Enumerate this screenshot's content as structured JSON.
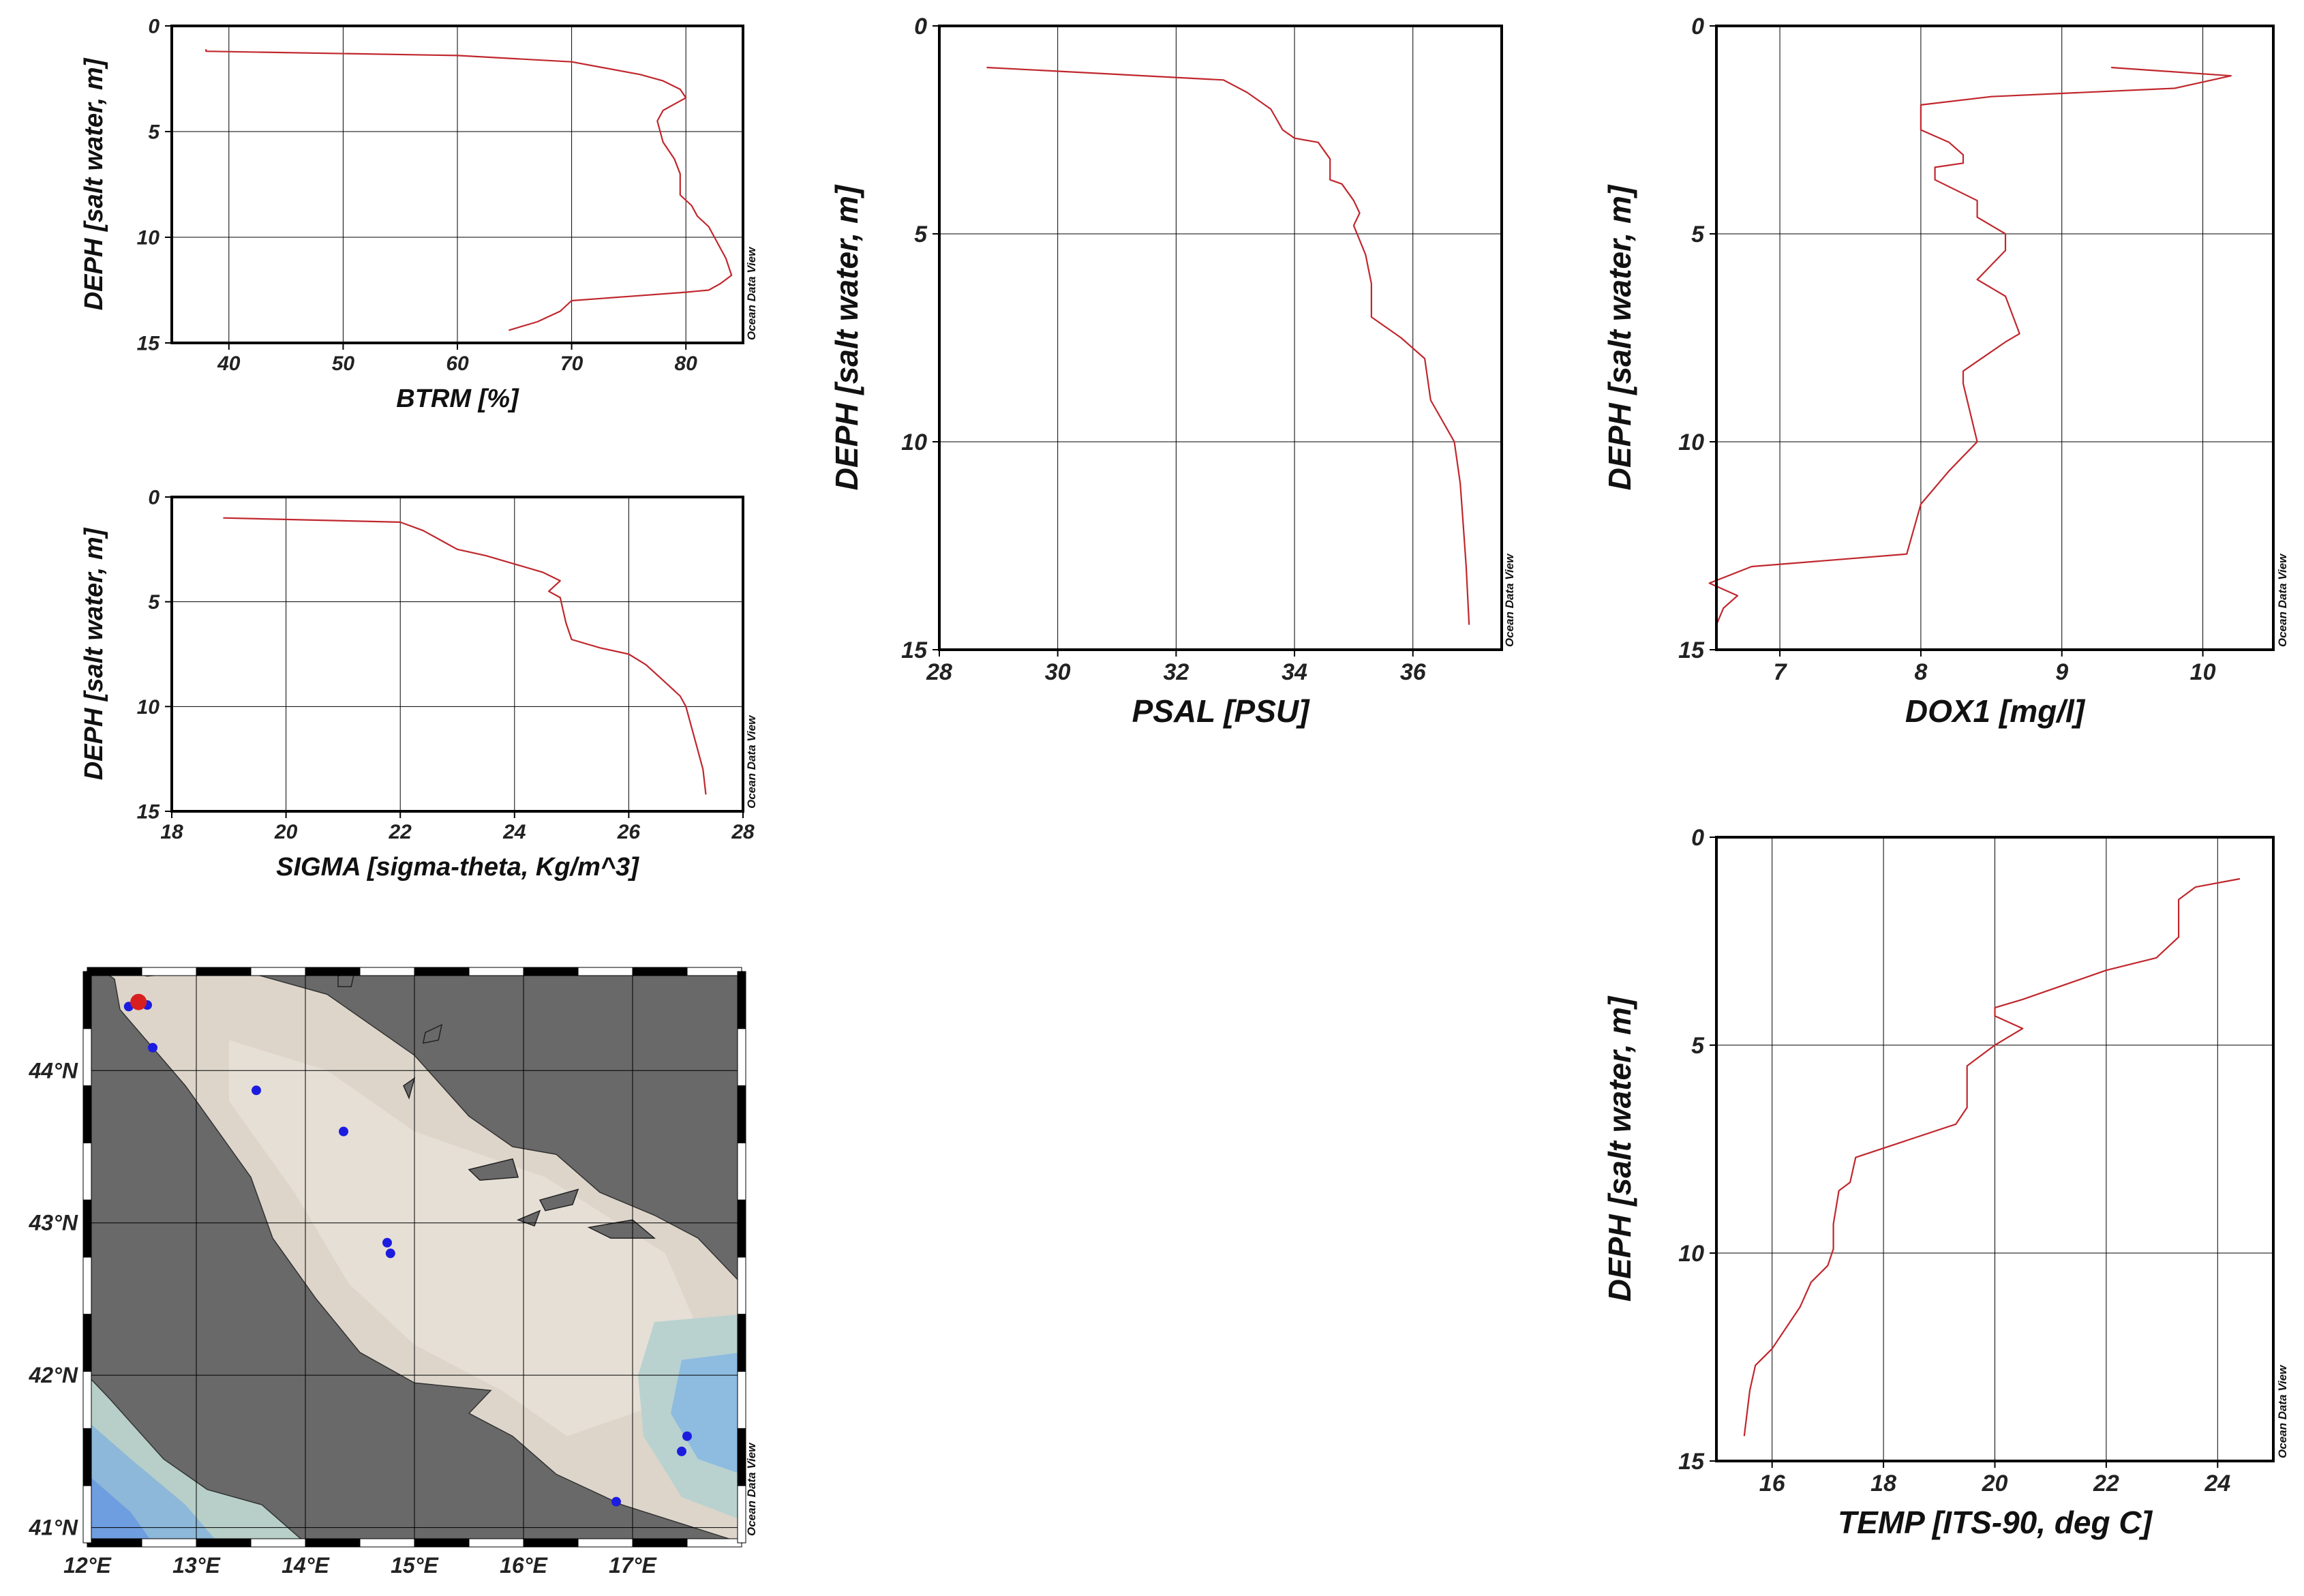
{
  "watermark": "Ocean Data View",
  "chart_data": [
    {
      "id": "btrm",
      "type": "line",
      "xlabel": "BTRM [%]",
      "ylabel": "DEPH [salt water, m]",
      "xlim": [
        35,
        85
      ],
      "ylim": [
        15,
        0
      ],
      "xticks": [
        40,
        50,
        60,
        70,
        80
      ],
      "yticks": [
        0,
        5,
        10,
        15
      ],
      "grid": true,
      "line_color": "#c0272d",
      "series": [
        {
          "x": [
            38,
            38,
            60,
            70,
            73,
            76,
            78,
            79.5,
            80,
            79,
            78,
            77.5,
            78,
            79,
            79.5,
            79.5,
            80.5,
            81,
            82,
            82.5,
            83,
            83.5,
            84,
            83,
            82,
            80,
            75,
            70,
            69,
            67,
            64.5
          ],
          "y": [
            1.1,
            1.2,
            1.4,
            1.7,
            2.0,
            2.3,
            2.6,
            3.0,
            3.4,
            3.7,
            4.0,
            4.5,
            5.5,
            6.3,
            7.0,
            8.0,
            8.5,
            9.0,
            9.5,
            10.0,
            10.5,
            11.0,
            11.8,
            12.2,
            12.5,
            12.6,
            12.8,
            13.0,
            13.5,
            14.0,
            14.4
          ]
        }
      ]
    },
    {
      "id": "sigma",
      "type": "line",
      "xlabel": "SIGMA [sigma-theta, Kg/m^3]",
      "ylabel": "DEPH [salt water, m]",
      "xlim": [
        18,
        28
      ],
      "ylim": [
        15,
        0
      ],
      "xticks": [
        18,
        20,
        22,
        24,
        26,
        28
      ],
      "yticks": [
        0,
        5,
        10,
        15
      ],
      "grid": true,
      "line_color": "#c0272d",
      "series": [
        {
          "x": [
            18.9,
            22.0,
            22.4,
            22.8,
            23.0,
            23.5,
            24.0,
            24.5,
            24.8,
            24.6,
            24.8,
            24.9,
            25.0,
            25.5,
            26.0,
            26.3,
            26.5,
            26.7,
            26.9,
            27.0,
            27.1,
            27.2,
            27.3,
            27.35
          ],
          "y": [
            1.0,
            1.2,
            1.6,
            2.2,
            2.5,
            2.8,
            3.2,
            3.6,
            4.0,
            4.5,
            4.8,
            6.0,
            6.8,
            7.2,
            7.5,
            8.0,
            8.5,
            9.0,
            9.5,
            10.0,
            11.0,
            12.0,
            13.0,
            14.2
          ]
        }
      ]
    },
    {
      "id": "psal",
      "type": "line",
      "xlabel": "PSAL [PSU]",
      "ylabel": "DEPH [salt water, m]",
      "xlim": [
        28,
        37.5
      ],
      "ylim": [
        15,
        0
      ],
      "xticks": [
        28,
        30,
        32,
        34,
        36
      ],
      "yticks": [
        0,
        5,
        10,
        15
      ],
      "grid": true,
      "line_color": "#c0272d",
      "series": [
        {
          "x": [
            28.8,
            32.8,
            33.2,
            33.6,
            33.8,
            34.0,
            34.4,
            34.6,
            34.6,
            34.8,
            35.0,
            35.1,
            35.0,
            35.2,
            35.3,
            35.3,
            35.8,
            36.2,
            36.3,
            36.5,
            36.7,
            36.8,
            36.85,
            36.9,
            36.95
          ],
          "y": [
            1.0,
            1.3,
            1.6,
            2.0,
            2.5,
            2.7,
            2.8,
            3.2,
            3.7,
            3.8,
            4.2,
            4.5,
            4.8,
            5.5,
            6.2,
            7.0,
            7.5,
            8.0,
            9.0,
            9.5,
            10.0,
            11.0,
            12.0,
            13.0,
            14.4
          ]
        }
      ]
    },
    {
      "id": "dox1",
      "type": "line",
      "xlabel": "DOX1 [mg/l]",
      "ylabel": "DEPH [salt water, m]",
      "xlim": [
        6.55,
        10.5
      ],
      "ylim": [
        15,
        0
      ],
      "xticks": [
        7,
        8,
        9,
        10
      ],
      "yticks": [
        0,
        5,
        10,
        15
      ],
      "grid": true,
      "line_color": "#c0272d",
      "series": [
        {
          "x": [
            9.35,
            10.2,
            9.8,
            8.5,
            8.0,
            8.0,
            8.2,
            8.3,
            8.3,
            8.1,
            8.1,
            8.4,
            8.4,
            8.6,
            8.6,
            8.4,
            8.6,
            8.7,
            8.6,
            8.3,
            8.3,
            8.4,
            8.2,
            8.0,
            7.9,
            6.8,
            6.5,
            6.7,
            6.6,
            6.55
          ],
          "y": [
            1.0,
            1.2,
            1.5,
            1.7,
            1.9,
            2.5,
            2.8,
            3.1,
            3.3,
            3.4,
            3.7,
            4.2,
            4.6,
            5.0,
            5.4,
            6.1,
            6.5,
            7.4,
            7.6,
            8.3,
            8.6,
            10.0,
            10.7,
            11.5,
            12.7,
            13.0,
            13.4,
            13.7,
            14.0,
            14.4
          ]
        }
      ]
    },
    {
      "id": "temp",
      "type": "line",
      "xlabel": "TEMP [ITS-90, deg C]",
      "ylabel": "DEPH [salt water, m]",
      "xlim": [
        15,
        25
      ],
      "ylim": [
        15,
        0
      ],
      "xticks": [
        16,
        18,
        20,
        22,
        24
      ],
      "yticks": [
        0,
        5,
        10,
        15
      ],
      "grid": true,
      "line_color": "#c0272d",
      "series": [
        {
          "x": [
            24.4,
            23.6,
            23.3,
            23.3,
            22.9,
            22.0,
            20.5,
            20.0,
            20.0,
            20.5,
            20.0,
            19.7,
            19.5,
            19.5,
            19.3,
            17.5,
            17.4,
            17.2,
            17.1,
            17.1,
            17.0,
            16.7,
            16.5,
            16.2,
            16.0,
            15.7,
            15.6,
            15.5
          ],
          "y": [
            1.0,
            1.2,
            1.5,
            2.4,
            2.9,
            3.2,
            3.9,
            4.1,
            4.3,
            4.6,
            5.0,
            5.3,
            5.5,
            6.5,
            6.9,
            7.7,
            8.3,
            8.5,
            9.3,
            9.9,
            10.3,
            10.7,
            11.3,
            11.9,
            12.3,
            12.7,
            13.3,
            14.4
          ]
        }
      ]
    },
    {
      "id": "map",
      "type": "map",
      "xlim": [
        12,
        18
      ],
      "ylim": [
        40.9,
        44.65
      ],
      "xticks": [
        12,
        13,
        14,
        15,
        16,
        17
      ],
      "yticks": [
        41,
        42,
        43,
        44
      ],
      "xticklabels": [
        "12°E",
        "13°E",
        "14°E",
        "15°E",
        "16°E",
        "17°E"
      ],
      "yticklabels": [
        "41°N",
        "42°N",
        "43°N",
        "44°N"
      ],
      "land_color": "#696969",
      "sea_color": "#ddd5ca",
      "station_color": "#1c1ce0",
      "selected_station_color": "#d81f1f",
      "stations": [
        {
          "lon": 12.38,
          "lat": 44.42
        },
        {
          "lon": 12.55,
          "lat": 44.43
        },
        {
          "lon": 12.6,
          "lat": 44.15
        },
        {
          "lon": 13.55,
          "lat": 43.87
        },
        {
          "lon": 14.35,
          "lat": 43.6
        },
        {
          "lon": 14.75,
          "lat": 42.87
        },
        {
          "lon": 14.78,
          "lat": 42.8
        },
        {
          "lon": 17.5,
          "lat": 41.6
        },
        {
          "lon": 17.45,
          "lat": 41.5
        },
        {
          "lon": 16.85,
          "lat": 41.17
        }
      ],
      "selected_station": {
        "lon": 12.47,
        "lat": 44.45
      }
    }
  ]
}
